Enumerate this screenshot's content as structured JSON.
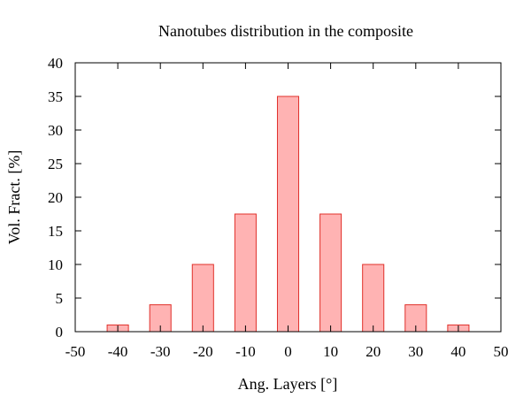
{
  "chart_data": {
    "type": "bar",
    "title": "Nanotubes distribution in the composite",
    "xlabel": "Ang. Layers [°]",
    "ylabel": "Vol. Fract. [%]",
    "x": [
      -40,
      -30,
      -20,
      -10,
      0,
      10,
      20,
      30,
      40
    ],
    "values": [
      1,
      4,
      10,
      17.5,
      35,
      17.5,
      10,
      4,
      1
    ],
    "xlim": [
      -50,
      50
    ],
    "ylim": [
      0,
      40
    ],
    "x_ticks": [
      -50,
      -40,
      -30,
      -20,
      -10,
      0,
      10,
      20,
      30,
      40,
      50
    ],
    "y_ticks": [
      0,
      5,
      10,
      15,
      20,
      25,
      30,
      35,
      40
    ],
    "bar_width": 5,
    "bar_fill": "#ffb3b3",
    "bar_stroke": "#e0302a",
    "grid": false,
    "legend": "none"
  }
}
